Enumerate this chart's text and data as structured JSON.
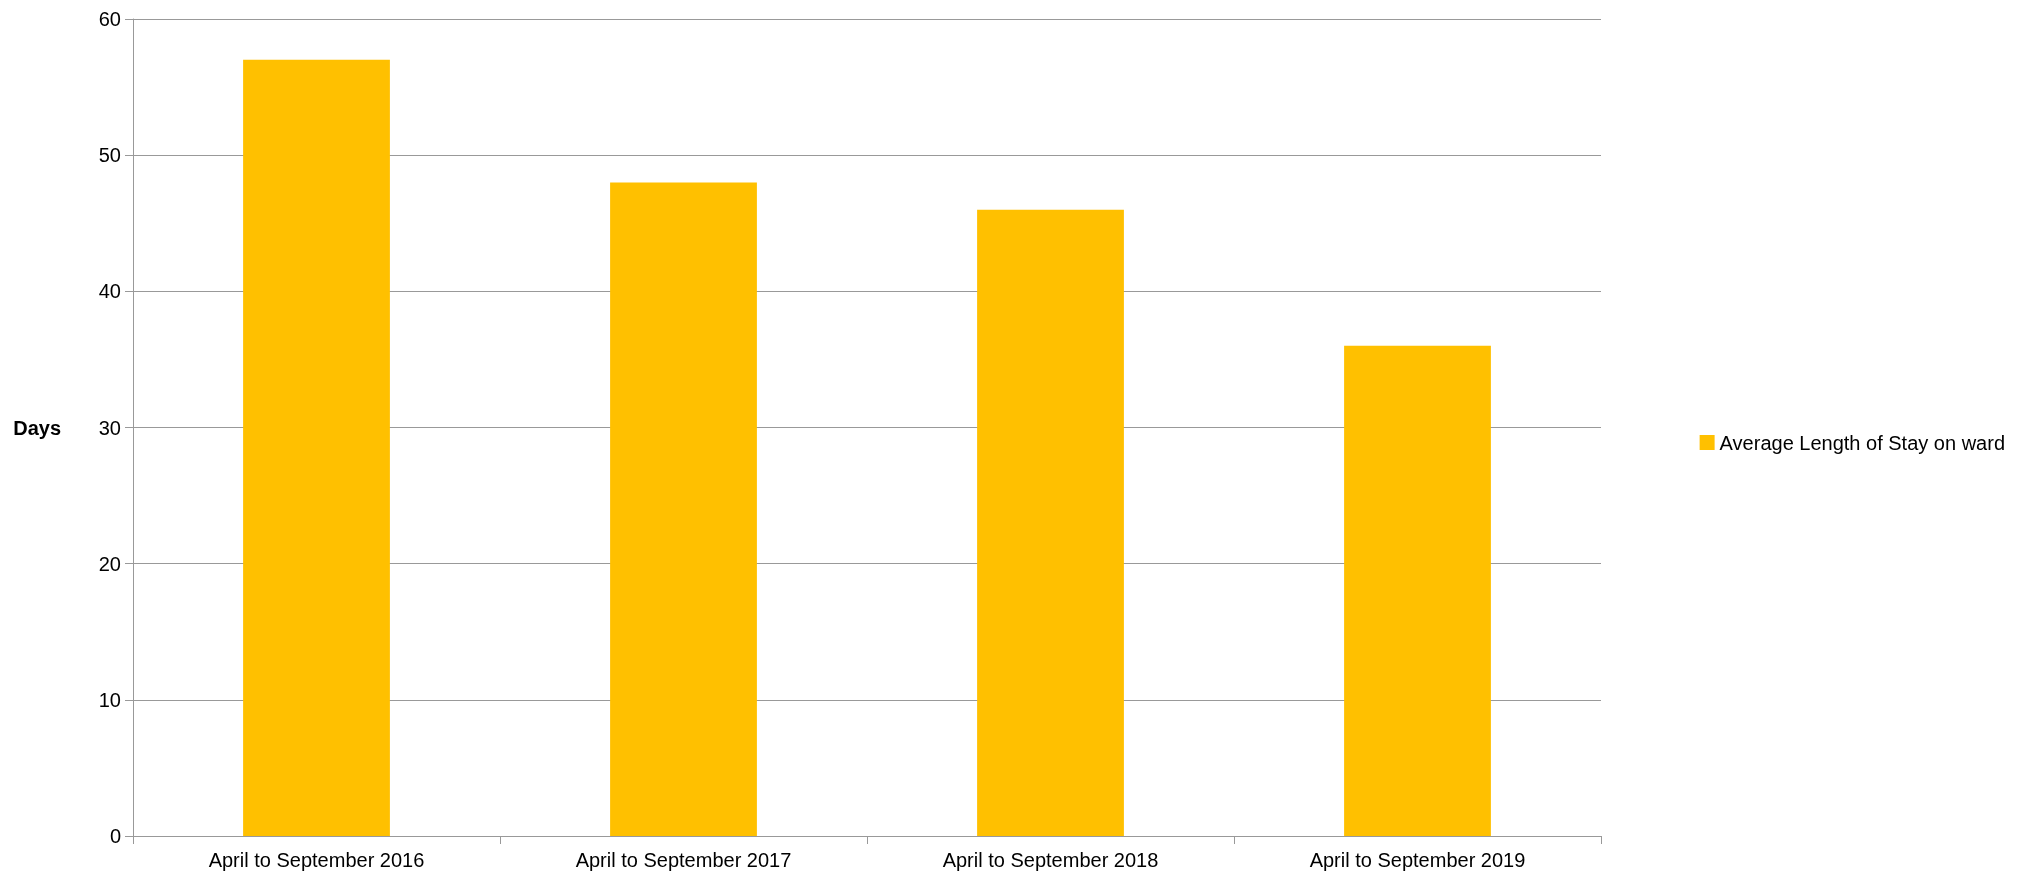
{
  "chart_data": {
    "type": "bar",
    "ylabel": "Days",
    "categories": [
      "April to September 2016",
      "April to September 2017",
      "April to September 2018",
      "April to September 2019"
    ],
    "series": [
      {
        "name": "Average Length of Stay on ward",
        "color": "#ffc000",
        "values": [
          57,
          48,
          46,
          36
        ]
      }
    ],
    "ylim": [
      0,
      60
    ],
    "yticks": [
      0,
      10,
      20,
      30,
      40,
      50,
      60
    ],
    "grid": "y",
    "legend": "right"
  }
}
